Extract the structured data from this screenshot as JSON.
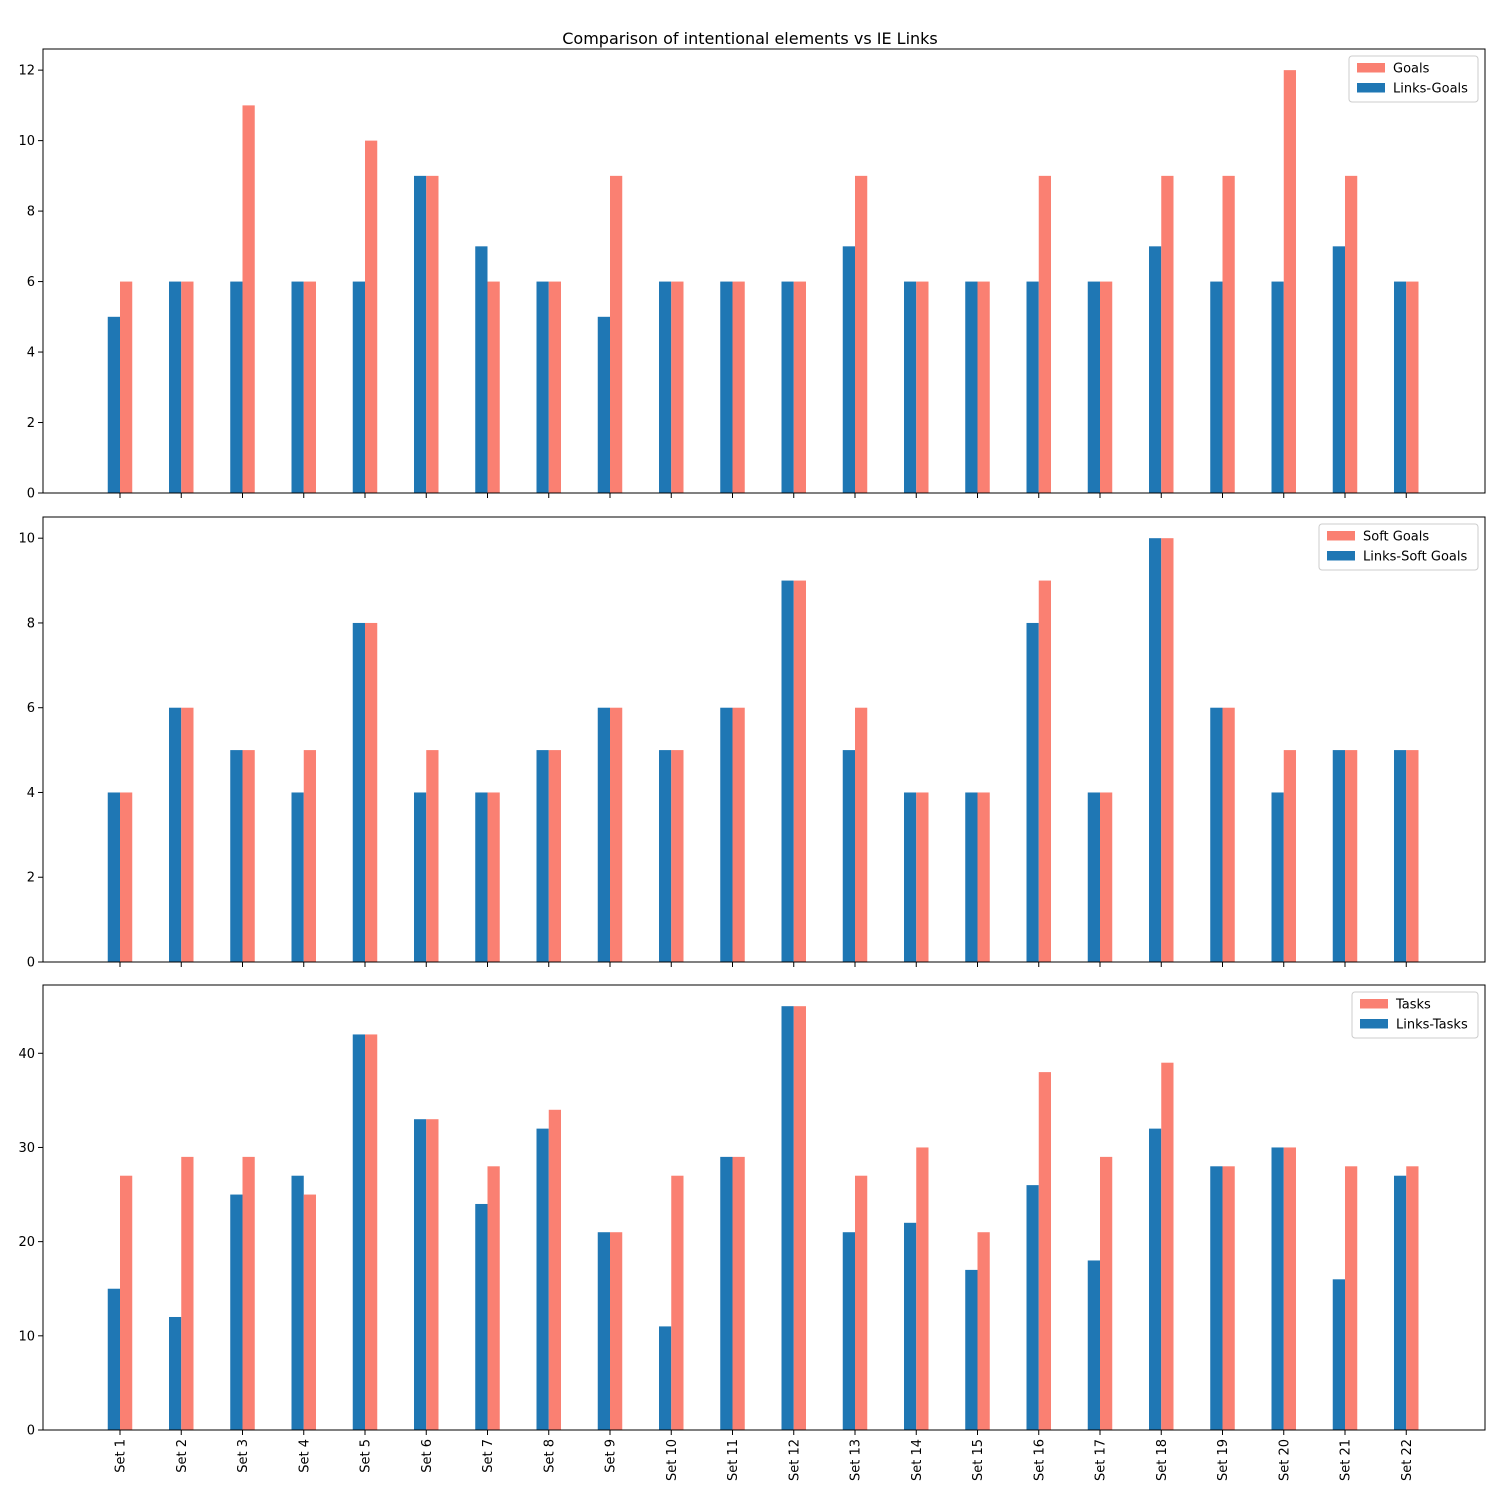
{
  "chart_data": {
    "type": "bar",
    "title": "Comparison of intentional elements vs IE Links",
    "categories": [
      "Set 1",
      "Set 2",
      "Set 3",
      "Set 4",
      "Set 5",
      "Set 6",
      "Set 7",
      "Set 8",
      "Set 9",
      "Set 10",
      "Set 11",
      "Set 12",
      "Set 13",
      "Set 14",
      "Set 15",
      "Set 16",
      "Set 17",
      "Set 18",
      "Set 19",
      "Set 20",
      "Set 21",
      "Set 22"
    ],
    "panels": [
      {
        "ylim": [
          0,
          12.6
        ],
        "yticks": [
          0,
          2,
          4,
          6,
          8,
          10,
          12
        ],
        "legend_position": "top-right",
        "series": [
          {
            "name": "Goals",
            "color": "#fa8072",
            "values": [
              6,
              6,
              11,
              6,
              10,
              9,
              6,
              6,
              9,
              6,
              6,
              6,
              9,
              6,
              6,
              9,
              6,
              9,
              9,
              12,
              9,
              6
            ]
          },
          {
            "name": "Links-Goals",
            "color": "#1f77b4",
            "values": [
              5,
              6,
              6,
              6,
              6,
              9,
              7,
              6,
              5,
              6,
              6,
              6,
              7,
              6,
              6,
              6,
              6,
              7,
              6,
              6,
              7,
              6
            ]
          }
        ]
      },
      {
        "ylim": [
          0,
          10.5
        ],
        "yticks": [
          0,
          2,
          4,
          6,
          8,
          10
        ],
        "legend_position": "top-right",
        "series": [
          {
            "name": "Soft Goals",
            "color": "#fa8072",
            "values": [
              4,
              6,
              5,
              5,
              8,
              5,
              4,
              5,
              6,
              5,
              6,
              9,
              6,
              4,
              4,
              9,
              4,
              10,
              6,
              5,
              5,
              5
            ]
          },
          {
            "name": "Links-Soft Goals",
            "color": "#1f77b4",
            "values": [
              4,
              6,
              5,
              4,
              8,
              4,
              4,
              5,
              6,
              5,
              6,
              9,
              5,
              4,
              4,
              8,
              4,
              10,
              6,
              4,
              5,
              5
            ]
          }
        ]
      },
      {
        "ylim": [
          0,
          47.25
        ],
        "yticks": [
          0,
          10,
          20,
          30,
          40
        ],
        "legend_position": "top-right",
        "series": [
          {
            "name": "Tasks",
            "color": "#fa8072",
            "values": [
              27,
              29,
              29,
              25,
              42,
              33,
              28,
              34,
              21,
              27,
              29,
              45,
              27,
              30,
              21,
              38,
              29,
              39,
              28,
              30,
              28,
              28
            ]
          },
          {
            "name": "Links-Tasks",
            "color": "#1f77b4",
            "values": [
              15,
              12,
              25,
              27,
              42,
              33,
              24,
              32,
              21,
              11,
              29,
              45,
              21,
              22,
              17,
              26,
              18,
              32,
              28,
              30,
              16,
              27
            ]
          }
        ]
      }
    ]
  }
}
